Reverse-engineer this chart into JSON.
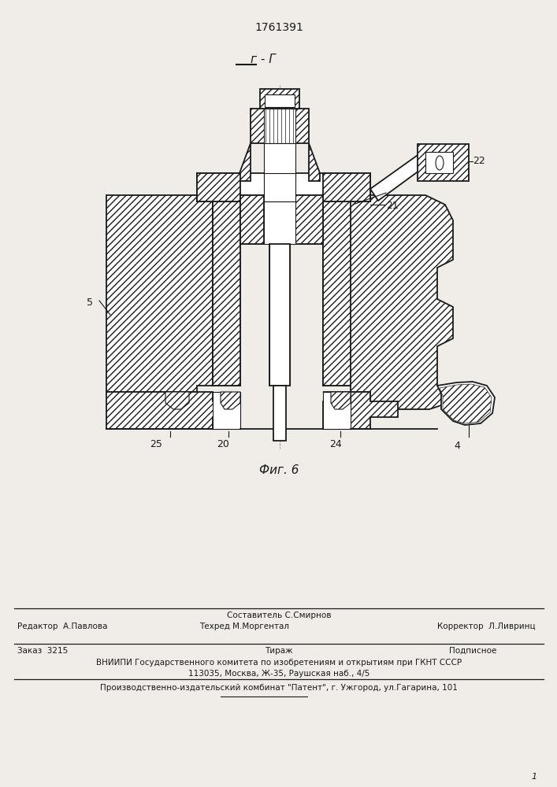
{
  "patent_number": "1761391",
  "section_label": "г - Г",
  "fig_label": "Фиг. 6",
  "bg_color": "#f0ede8",
  "line_color": "#1a1a1a",
  "footer_sostavitel": "Составитель С.Смирнов",
  "footer_redaktor": "Редактор  А.Павлова",
  "footer_tehred": "Техред М.Моргентал",
  "footer_korrektor": "Корректор  Л.Ливринц",
  "footer_zakaz": "Заказ  3215",
  "footer_tirazh": "Тираж",
  "footer_podpisnoe": "Подписное",
  "footer_vniipи": "ВНИИПИ Государственного комитета по изобретениям и открытиям при ГКНТ СССР",
  "footer_address": "113035, Москва, Ж-35, Раушская наб., 4/5",
  "footer_patent": "Производственно-издательский комбинат \"Патент\", г. Ужгород, ул.Гагарина, 101"
}
